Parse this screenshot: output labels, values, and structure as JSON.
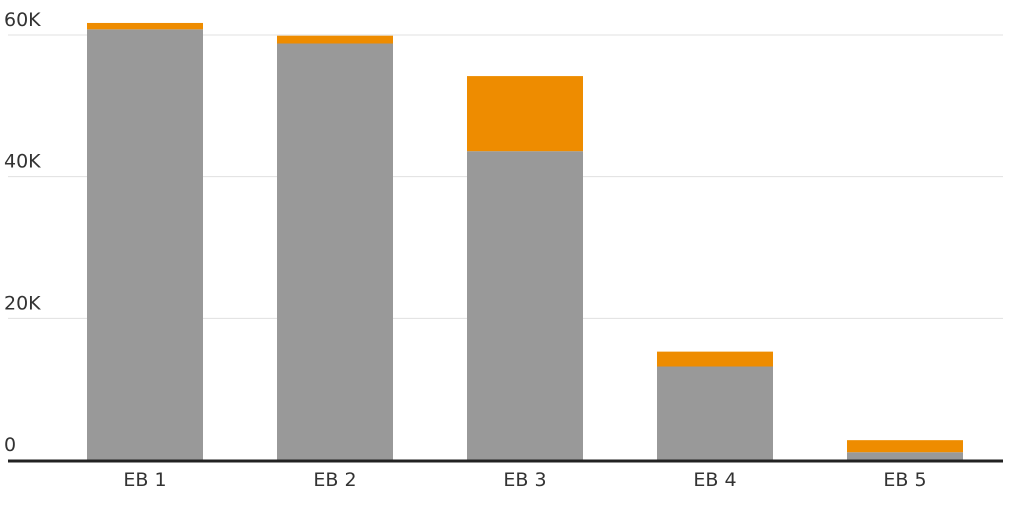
{
  "chart_data": {
    "type": "bar",
    "stacked": true,
    "categories": [
      "EB 1",
      "EB 2",
      "EB 3",
      "EB 4",
      "EB 5"
    ],
    "series": [
      {
        "values": [
          60800,
          58800,
          43600,
          13200,
          1100
        ]
      },
      {
        "values": [
          900,
          1100,
          10600,
          2100,
          1700
        ]
      }
    ],
    "ylim": [
      0,
      60000
    ],
    "yticks": [
      0,
      20000,
      40000,
      60000
    ],
    "ytick_labels": [
      "0",
      "20K",
      "40K",
      "60K"
    ],
    "grid": true,
    "colors": {
      "series": [
        "#999999",
        "#ee8c00"
      ],
      "grid": "#e0e0e0",
      "baseline": "#222222"
    }
  }
}
